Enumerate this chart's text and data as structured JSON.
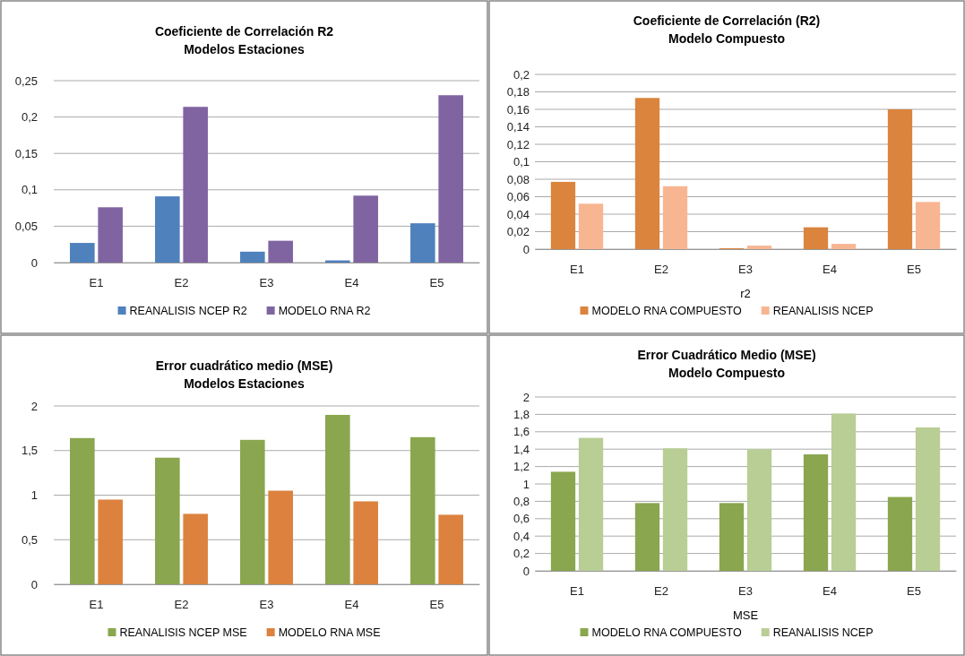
{
  "chart_data": [
    {
      "type": "bar",
      "title": "Coeficiente de Correlación R2\nModelos Estaciones",
      "categories": [
        "E1",
        "E2",
        "E3",
        "E4",
        "E5"
      ],
      "series": [
        {
          "name": "REANALISIS NCEP R2",
          "color": "#4f81bd",
          "values": [
            0.027,
            0.091,
            0.015,
            0.003,
            0.054
          ]
        },
        {
          "name": "MODELO RNA R2",
          "color": "#8064a2",
          "values": [
            0.076,
            0.214,
            0.03,
            0.092,
            0.23
          ]
        }
      ],
      "ylim": [
        0,
        0.25
      ],
      "yticks": [
        0,
        {
          "value": 0.05,
          "label": "0,05"
        },
        {
          "value": 0.1,
          "label": "0,1"
        },
        {
          "value": 0.15,
          "label": "0,15"
        },
        {
          "value": 0.2,
          "label": "0,2"
        },
        {
          "value": 0.25,
          "label": "0,25"
        }
      ],
      "grid": "y",
      "legend": "bottom"
    },
    {
      "type": "bar",
      "title": "Coeficiente de Correlación (R2)\nModelo Compuesto",
      "xlabel": "r2",
      "categories": [
        "E1",
        "E2",
        "E3",
        "E4",
        "E5"
      ],
      "series": [
        {
          "name": "MODELO RNA COMPUESTO",
          "color": "#db843d",
          "values": [
            0.077,
            0.173,
            0.001,
            0.025,
            0.16
          ]
        },
        {
          "name": "REANALISIS NCEP",
          "color": "#f8b592",
          "values": [
            0.052,
            0.072,
            0.004,
            0.006,
            0.054
          ]
        }
      ],
      "ylim": [
        0,
        0.2
      ],
      "yticks": [
        0,
        {
          "value": 0.02,
          "label": "0,02"
        },
        {
          "value": 0.04,
          "label": "0,04"
        },
        {
          "value": 0.06,
          "label": "0,06"
        },
        {
          "value": 0.08,
          "label": "0,08"
        },
        {
          "value": 0.1,
          "label": "0,1"
        },
        {
          "value": 0.12,
          "label": "0,12"
        },
        {
          "value": 0.14,
          "label": "0,14"
        },
        {
          "value": 0.16,
          "label": "0,16"
        },
        {
          "value": 0.18,
          "label": "0,18"
        },
        {
          "value": 0.2,
          "label": "0,2"
        }
      ],
      "grid": "y",
      "legend": "bottom"
    },
    {
      "type": "bar",
      "title": "Error cuadrático medio (MSE)\nModelos Estaciones",
      "categories": [
        "E1",
        "E2",
        "E3",
        "E4",
        "E5"
      ],
      "series": [
        {
          "name": "REANALISIS NCEP MSE",
          "color": "#8aa64e",
          "values": [
            1.64,
            1.42,
            1.62,
            1.9,
            1.65
          ]
        },
        {
          "name": "MODELO RNA MSE",
          "color": "#dc823e",
          "values": [
            0.95,
            0.79,
            1.05,
            0.93,
            0.78
          ]
        }
      ],
      "ylim": [
        0,
        2
      ],
      "yticks": [
        0,
        {
          "value": 0.5,
          "label": "0,5"
        },
        1,
        {
          "value": 1.5,
          "label": "1,5"
        },
        2
      ],
      "grid": "y",
      "legend": "bottom"
    },
    {
      "type": "bar",
      "title": "Error Cuadrático Medio (MSE)\nModelo Compuesto",
      "xlabel": "MSE",
      "categories": [
        "E1",
        "E2",
        "E3",
        "E4",
        "E5"
      ],
      "series": [
        {
          "name": "MODELO RNA COMPUESTO",
          "color": "#8aa64e",
          "values": [
            1.14,
            0.78,
            0.78,
            1.34,
            0.85
          ]
        },
        {
          "name": "REANALISIS NCEP",
          "color": "#b8ce95",
          "values": [
            1.53,
            1.41,
            1.4,
            1.81,
            1.65
          ]
        }
      ],
      "ylim": [
        0,
        2
      ],
      "yticks": [
        0,
        {
          "value": 0.2,
          "label": "0,2"
        },
        {
          "value": 0.4,
          "label": "0,4"
        },
        {
          "value": 0.6,
          "label": "0,6"
        },
        {
          "value": 0.8,
          "label": "0,8"
        },
        1,
        {
          "value": 1.2,
          "label": "1,2"
        },
        {
          "value": 1.4,
          "label": "1,4"
        },
        {
          "value": 1.6,
          "label": "1,6"
        },
        {
          "value": 1.8,
          "label": "1,8"
        },
        2
      ],
      "grid": "y",
      "legend": "bottom"
    }
  ]
}
